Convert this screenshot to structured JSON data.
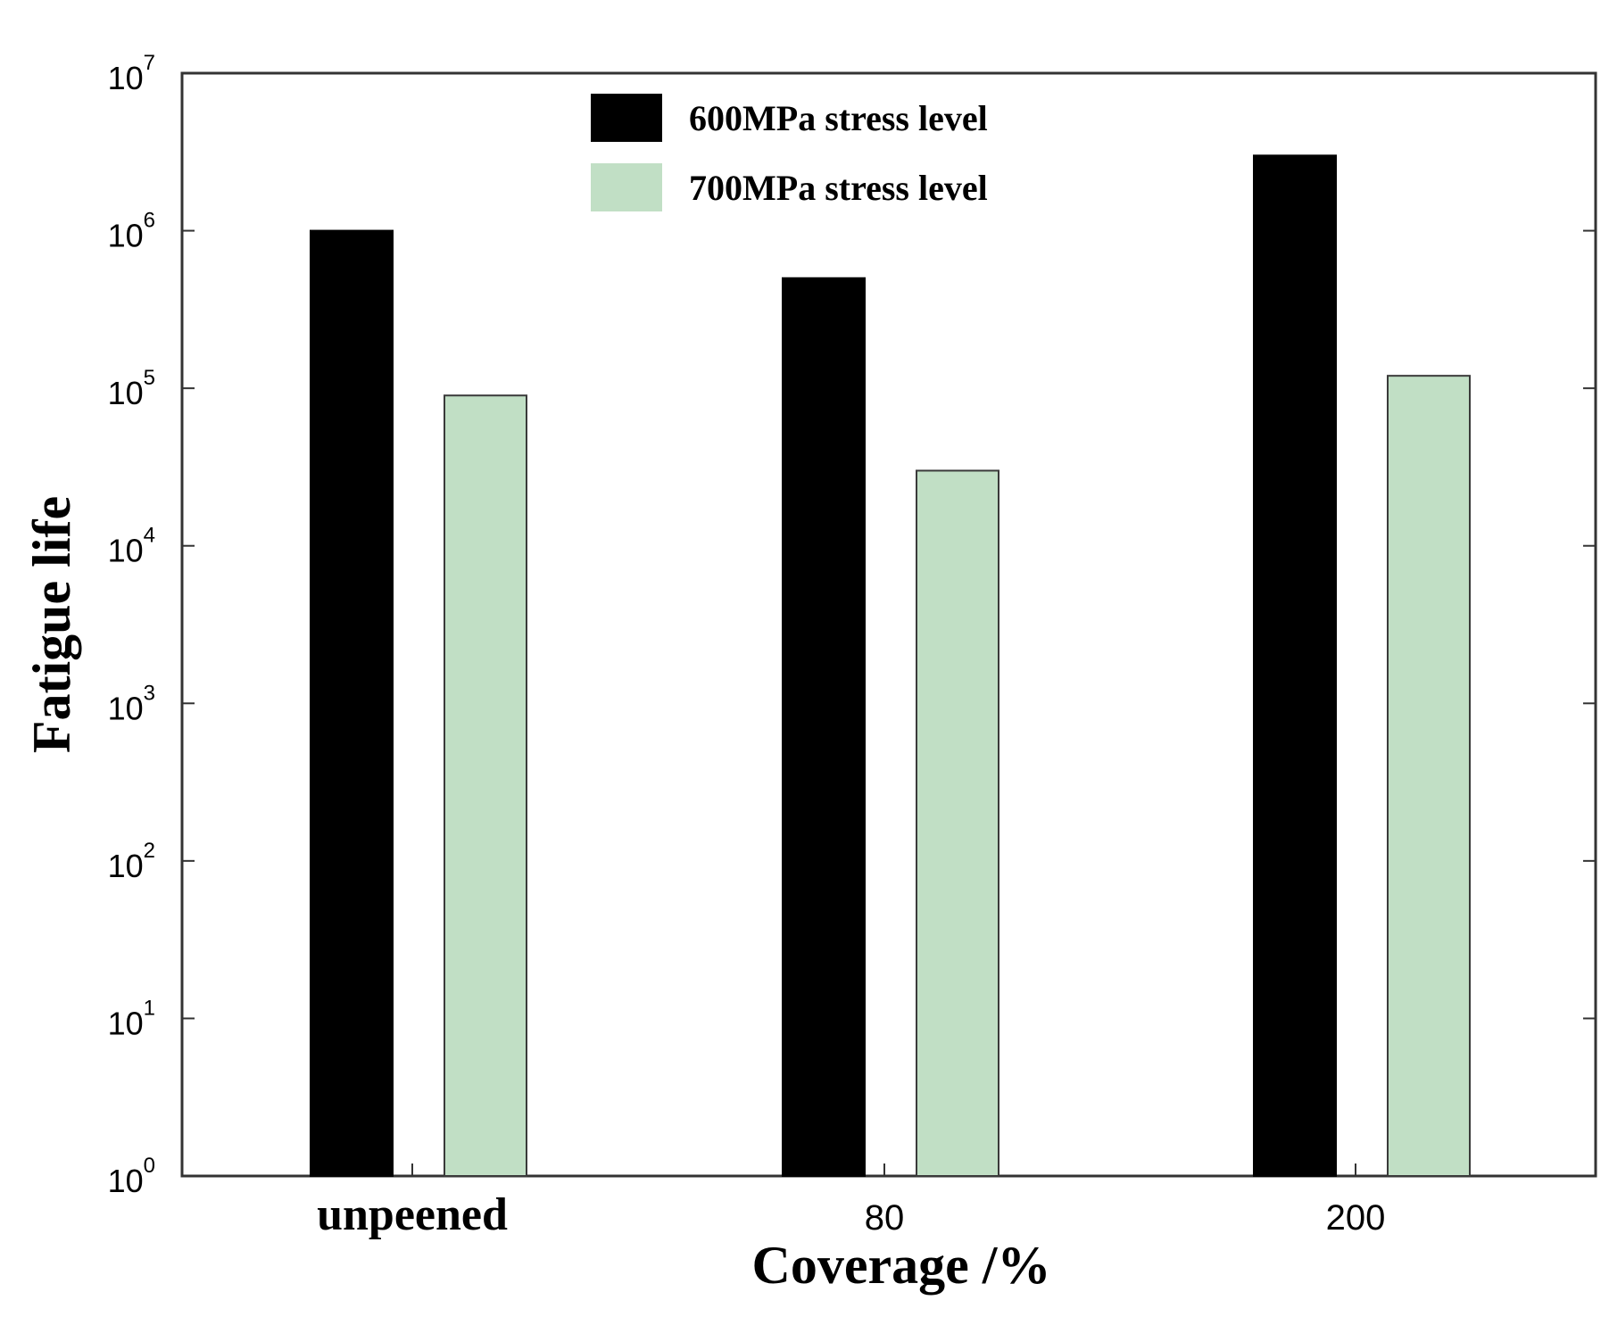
{
  "chart_data": {
    "type": "bar",
    "categories": [
      "unpeened",
      "80",
      "200"
    ],
    "series": [
      {
        "name": "600MPa stress level",
        "values": [
          1000000,
          500000,
          3000000
        ],
        "color": "#000000"
      },
      {
        "name": "700MPa stress level",
        "values": [
          90000,
          30000,
          120000
        ],
        "color": "#c1dfc5"
      }
    ],
    "xlabel": "Coverage /%",
    "ylabel": "Fatigue life",
    "yscale": "log",
    "ylim": [
      1,
      10000000
    ],
    "yticks": [
      {
        "base": "10",
        "exp": "0"
      },
      {
        "base": "10",
        "exp": "1"
      },
      {
        "base": "10",
        "exp": "2"
      },
      {
        "base": "10",
        "exp": "3"
      },
      {
        "base": "10",
        "exp": "4"
      },
      {
        "base": "10",
        "exp": "5"
      },
      {
        "base": "10",
        "exp": "6"
      },
      {
        "base": "10",
        "exp": "7"
      }
    ],
    "legend_position": "top-center",
    "grid": false
  }
}
